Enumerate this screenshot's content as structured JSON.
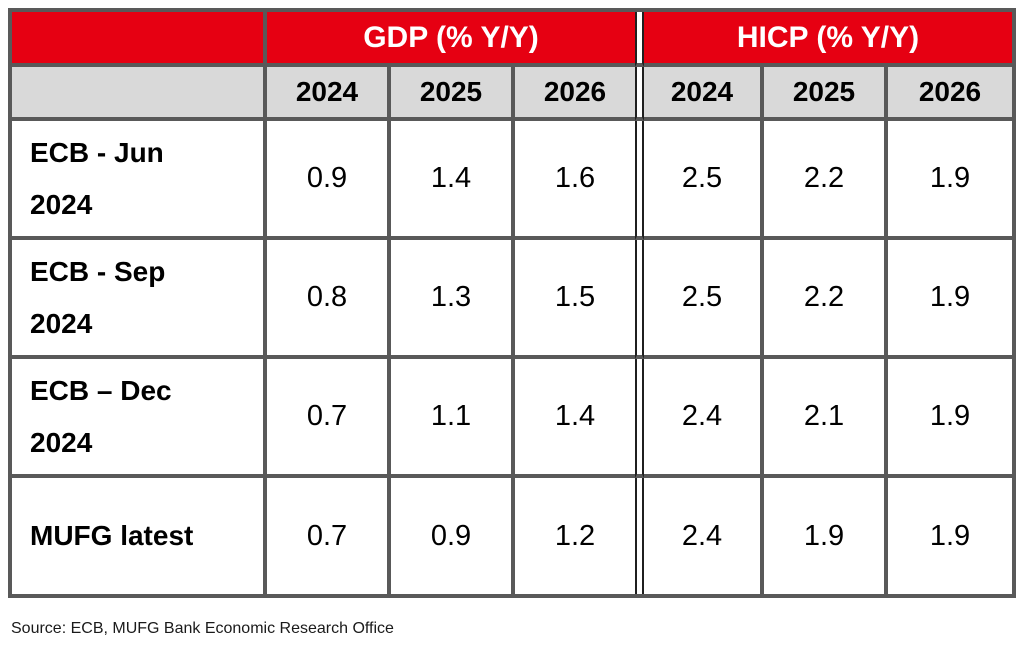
{
  "table": {
    "groups": [
      {
        "label": "GDP (% Y/Y)"
      },
      {
        "label": "HICP (% Y/Y)"
      }
    ],
    "years": [
      "2024",
      "2025",
      "2026"
    ],
    "rows": [
      {
        "label": "ECB - Jun\n2024",
        "gdp": [
          "0.9",
          "1.4",
          "1.6"
        ],
        "hicp": [
          "2.5",
          "2.2",
          "1.9"
        ]
      },
      {
        "label": "ECB - Sep\n2024",
        "gdp": [
          "0.8",
          "1.3",
          "1.5"
        ],
        "hicp": [
          "2.5",
          "2.2",
          "1.9"
        ]
      },
      {
        "label": "ECB – Dec\n2024",
        "gdp": [
          "0.7",
          "1.1",
          "1.4"
        ],
        "hicp": [
          "2.4",
          "2.1",
          "1.9"
        ]
      },
      {
        "label": "MUFG latest",
        "gdp": [
          "0.7",
          "0.9",
          "1.2"
        ],
        "hicp": [
          "2.4",
          "1.9",
          "1.9"
        ]
      }
    ]
  },
  "source": {
    "text": "Source: ECB, MUFG Bank Economic Research Office"
  },
  "colors": {
    "brand_red": "#e60012",
    "header_gray": "#d9d9d9",
    "border_gray": "#595959",
    "divider_black": "#1f1f1f",
    "header_text": "#ffffff"
  }
}
